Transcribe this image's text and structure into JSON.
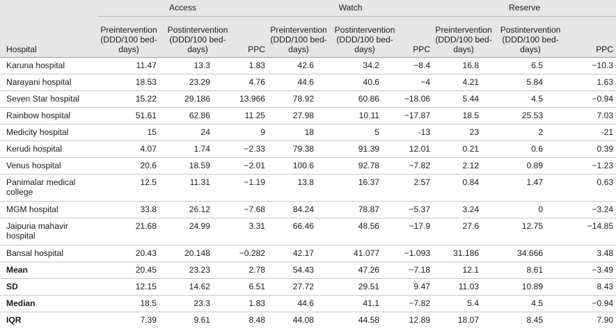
{
  "table": {
    "groups": [
      "Access",
      "Watch",
      "Reserve"
    ],
    "hospital_header": "Hospital",
    "sub_headers": [
      "Preintervention (DDD/100 bed-days)",
      "Postintervention (DDD/100 bed-days)",
      "PPC"
    ],
    "rows": [
      {
        "name": "Karuna hospital",
        "values": [
          "11.47",
          "13.3",
          "1.83",
          "42.6",
          "34.2",
          "−8.4",
          "16.8",
          "6.5",
          "−10.3"
        ]
      },
      {
        "name": "Narayani hospital",
        "values": [
          "18.53",
          "23.29",
          "4.76",
          "44.6",
          "40.6",
          "−4",
          "4.21",
          "5.84",
          "1.63"
        ]
      },
      {
        "name": "Seven Star hospital",
        "values": [
          "15.22",
          "29.186",
          "13.966",
          "78.92",
          "60.86",
          "−18.06",
          "5.44",
          "4.5",
          "−0.94"
        ]
      },
      {
        "name": "Rainbow hospital",
        "values": [
          "51.61",
          "62.86",
          "11.25",
          "27.98",
          "10.11",
          "−17.87",
          "18.5",
          "25.53",
          "7.03"
        ]
      },
      {
        "name": "Medicity hospital",
        "values": [
          "15",
          "24",
          "9",
          "18",
          "5",
          "-13",
          "23",
          "2",
          "-21"
        ]
      },
      {
        "name": "Kerudi hospital",
        "values": [
          "4.07",
          "1.74",
          "−2.33",
          "79.38",
          "91.39",
          "12.01",
          "0.21",
          "0.6",
          "0.39"
        ]
      },
      {
        "name": "Venus hospital",
        "values": [
          "20.6",
          "18.59",
          "−2.01",
          "100.6",
          "92.78",
          "−7.82",
          "2.12",
          "0.89",
          "−1.23"
        ]
      },
      {
        "name": "Panimalar medical college",
        "values": [
          "12.5",
          "11.31",
          "−1.19",
          "13.8",
          "16.37",
          "2.57",
          "0.84",
          "1.47",
          "0.63"
        ]
      },
      {
        "name": "MGM hospital",
        "values": [
          "33.8",
          "26.12",
          "−7.68",
          "84.24",
          "78.87",
          "−5.37",
          "3.24",
          "0",
          "−3.24"
        ]
      },
      {
        "name": "Jaipuria mahavir hospital",
        "values": [
          "21.68",
          "24.99",
          "3.31",
          "66.46",
          "48.56",
          "−17.9",
          "27.6",
          "12.75",
          "−14.85"
        ]
      },
      {
        "name": "Bansal hospital",
        "values": [
          "20.43",
          "20.148",
          "−0.282",
          "42.17",
          "41.077",
          "−1.093",
          "31.186",
          "34.666",
          "3.48"
        ]
      }
    ],
    "stats": [
      {
        "name": "Mean",
        "values": [
          "20.45",
          "23.23",
          "2.78",
          "54.43",
          "47.26",
          "−7.18",
          "12.1",
          "8.61",
          "−3.49"
        ]
      },
      {
        "name": "SD",
        "values": [
          "12.15",
          "14.62",
          "6.51",
          "27.72",
          "29.51",
          "9.47",
          "11.03",
          "10.89",
          "8.43"
        ]
      },
      {
        "name": "Median",
        "values": [
          "18.5",
          "23.3",
          "1.83",
          "44.6",
          "41.1",
          "−7.82",
          "5.4",
          "4.5",
          "−0.94"
        ]
      },
      {
        "name": "IQR",
        "values": [
          "7.39",
          "9.61",
          "8.48",
          "44.08",
          "44.58",
          "12.89",
          "18.07",
          "8.45",
          "7.90"
        ]
      }
    ]
  }
}
